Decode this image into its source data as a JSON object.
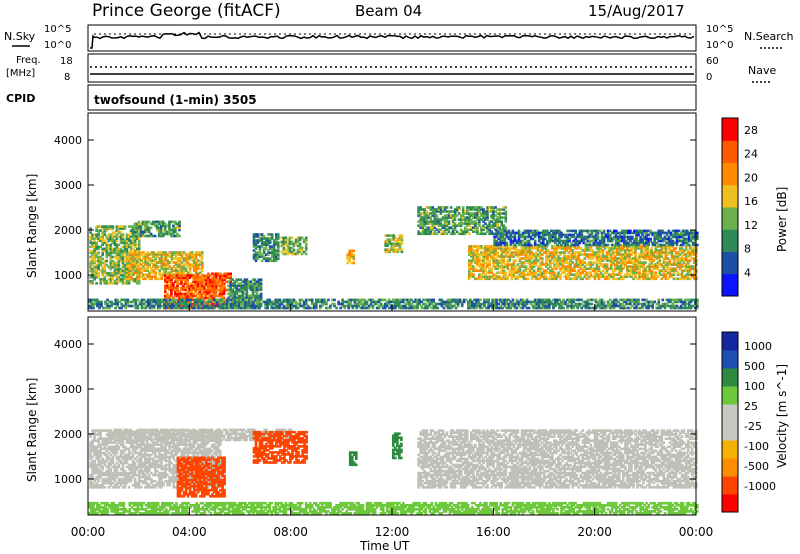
{
  "header": {
    "station": "Prince George (fitACF)",
    "beam": "Beam 04",
    "date": "15/Aug/2017"
  },
  "summary": {
    "nsky_label": "N.Sky",
    "nsearch_label": "N.Search",
    "freq_label_1": "Freq.",
    "freq_label_2": "[MHz]",
    "nave_label": "Nave",
    "cpid_label": "CPID",
    "cpid_value": "twofsound (1-min) 3505",
    "left_top_ticks": [
      "10^5",
      "10^0"
    ],
    "right_top_ticks": [
      "10^5",
      "10^0"
    ],
    "left_freq_ticks": [
      "18",
      "8"
    ],
    "right_nave_ticks": [
      "60",
      "0"
    ]
  },
  "colors": {
    "power_scale": [
      "#0a14ff",
      "#1e4fa8",
      "#2e8b57",
      "#6ab04c",
      "#f0c020",
      "#ff8a00",
      "#ff5a00",
      "#ff0000"
    ],
    "velocity_scale": [
      "#ff0000",
      "#ff4500",
      "#ff8c00",
      "#f5b000",
      "#c8c8c0",
      "#c8c8c0",
      "#6dc83c",
      "#2d8a3e",
      "#1e50b4",
      "#1428a0"
    ],
    "ground_scatter": "#c0c0b8"
  },
  "chart_data": [
    {
      "type": "heatmap",
      "panel": "power",
      "ylabel": "Slant Range [km]",
      "yticks": [
        1000,
        2000,
        3000,
        4000
      ],
      "ylim": [
        200,
        4600
      ],
      "xlim_hours": [
        0,
        24
      ],
      "colorbar_label": "Power [dB]",
      "colorbar_ticks": [
        4,
        8,
        12,
        16,
        20,
        24,
        28
      ],
      "colorbar_range": [
        0,
        30
      ],
      "regions": [
        {
          "t0": 0.05,
          "t1": 2.0,
          "r0": 800,
          "r1": 2100,
          "value": 14
        },
        {
          "t0": 1.8,
          "t1": 3.6,
          "r0": 1850,
          "r1": 2200,
          "value": 12
        },
        {
          "t0": 1.5,
          "t1": 4.5,
          "r0": 900,
          "r1": 1500,
          "value": 18
        },
        {
          "t0": 3.0,
          "t1": 5.4,
          "r0": 250,
          "r1": 1000,
          "value": 26
        },
        {
          "t0": 4.3,
          "t1": 5.6,
          "r0": 650,
          "r1": 1050,
          "value": 26
        },
        {
          "t0": 5.5,
          "t1": 6.8,
          "r0": 250,
          "r1": 900,
          "value": 10
        },
        {
          "t0": 6.5,
          "t1": 7.5,
          "r0": 1300,
          "r1": 1900,
          "value": 10
        },
        {
          "t0": 7.6,
          "t1": 8.6,
          "r0": 1450,
          "r1": 1850,
          "value": 14
        },
        {
          "t0": 10.2,
          "t1": 10.5,
          "r0": 1250,
          "r1": 1550,
          "value": 20
        },
        {
          "t0": 11.7,
          "t1": 12.4,
          "r0": 1500,
          "r1": 1900,
          "value": 16
        },
        {
          "t0": 13.0,
          "t1": 16.5,
          "r0": 1900,
          "r1": 2500,
          "value": 12
        },
        {
          "t0": 15.0,
          "t1": 24.0,
          "r0": 900,
          "r1": 1650,
          "value": 18
        },
        {
          "t0": 16.0,
          "t1": 24.0,
          "r0": 1650,
          "r1": 2000,
          "value": 8
        },
        {
          "t0": 0.0,
          "t1": 24.0,
          "r0": 250,
          "r1": 450,
          "value": 10
        }
      ]
    },
    {
      "type": "heatmap",
      "panel": "velocity",
      "ylabel": "Slant Range [km]",
      "yticks": [
        1000,
        2000,
        3000,
        4000
      ],
      "ylim": [
        200,
        4600
      ],
      "xlim_hours": [
        0,
        24
      ],
      "xlabel": "Time UT",
      "xticks": [
        "00:00",
        "04:00",
        "08:00",
        "12:00",
        "16:00",
        "20:00",
        "00:00"
      ],
      "colorbar_label": "Velocity [m s^-1]",
      "colorbar_ticks": [
        1000,
        500,
        100,
        25,
        -25,
        -100,
        -500,
        -1000
      ],
      "regions": [
        {
          "t0": 0.05,
          "t1": 5.2,
          "r0": 800,
          "r1": 2100,
          "value": 0,
          "ground": true
        },
        {
          "t0": 1.0,
          "t1": 8.0,
          "r0": 1850,
          "r1": 2100,
          "value": 0,
          "ground": true
        },
        {
          "t0": 3.5,
          "t1": 5.4,
          "r0": 600,
          "r1": 1500,
          "value": -300
        },
        {
          "t0": 6.5,
          "t1": 8.6,
          "r0": 1350,
          "r1": 2050,
          "value": -400
        },
        {
          "t0": 10.3,
          "t1": 10.6,
          "r0": 1300,
          "r1": 1600,
          "value": 400
        },
        {
          "t0": 12.0,
          "t1": 12.4,
          "r0": 1450,
          "r1": 2000,
          "value": 150
        },
        {
          "t0": 13.0,
          "t1": 24.0,
          "r0": 800,
          "r1": 2100,
          "value": 0,
          "ground": true
        },
        {
          "t0": 0.0,
          "t1": 24.0,
          "r0": 220,
          "r1": 450,
          "value": 60
        }
      ]
    }
  ],
  "time_axis": {
    "label": "Time UT",
    "ticks": [
      "00:00",
      "04:00",
      "08:00",
      "12:00",
      "16:00",
      "20:00",
      "00:00"
    ]
  }
}
